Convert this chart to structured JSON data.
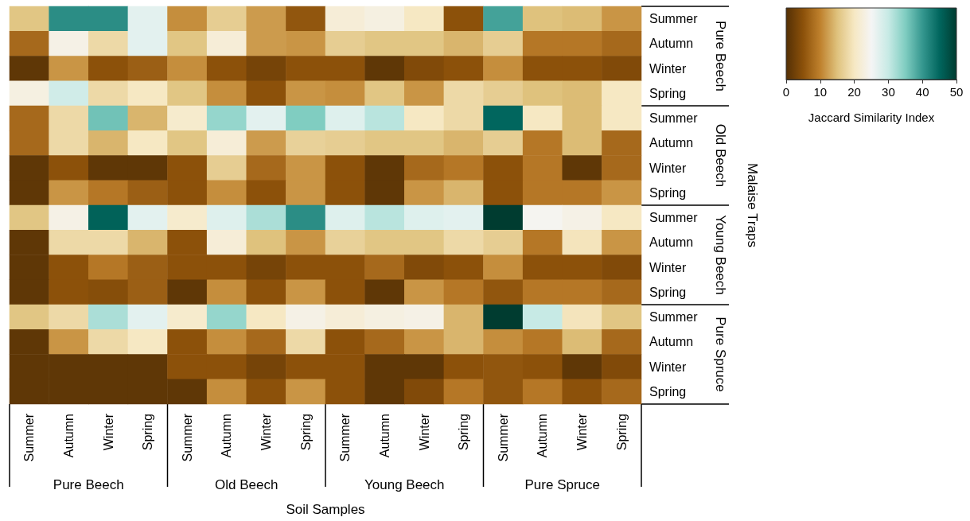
{
  "chart_data": {
    "type": "heatmap",
    "xlabel": "Soil Samples",
    "ylabel": "Malaise Traps",
    "clabel": "Jaccard Similarity Index",
    "categories": [
      "Summer",
      "Autumn",
      "Winter",
      "Spring",
      "Summer",
      "Autumn",
      "Winter",
      "Spring",
      "Summer",
      "Autumn",
      "Winter",
      "Spring",
      "Summer",
      "Autumn",
      "Winter",
      "Spring"
    ],
    "y_categories": [
      "Summer",
      "Autumn",
      "Winter",
      "Spring",
      "Summer",
      "Autumn",
      "Winter",
      "Spring",
      "Summer",
      "Autumn",
      "Winter",
      "Spring",
      "Summer",
      "Autumn",
      "Winter",
      "Spring"
    ],
    "annotations": [
      "Pure Beech",
      "Old Beech",
      "Young Beech",
      "Pure Spruce",
      "Pure Beech",
      "Old Beech",
      "Young Beech",
      "Pure Spruce"
    ],
    "cells": [
      [
        15.5,
        41,
        41,
        27,
        11,
        16.5,
        12,
        5.5,
        22,
        23,
        20,
        5,
        39,
        15,
        14.5,
        11.5
      ],
      [
        7.5,
        23.5,
        18,
        27,
        15.5,
        22,
        12,
        11.5,
        16.5,
        15.5,
        15.5,
        14,
        16.5,
        9,
        9,
        7.5
      ],
      [
        1,
        11.5,
        5,
        6.5,
        11,
        5,
        3,
        5,
        5,
        1,
        4,
        5,
        11,
        5,
        5,
        4
      ],
      [
        23,
        29,
        18,
        20,
        15.5,
        11,
        5,
        11.5,
        11,
        15.5,
        11.5,
        18,
        16.5,
        15,
        14.5,
        20
      ],
      [
        7.5,
        18,
        36,
        14,
        21,
        33.5,
        27,
        35,
        27.5,
        31,
        20,
        18,
        45,
        20,
        14.5,
        20
      ],
      [
        7.5,
        18,
        14,
        20,
        15.5,
        22,
        12,
        17,
        16.5,
        15.5,
        15.5,
        14,
        16.5,
        9,
        14.5,
        7.5
      ],
      [
        1,
        5,
        1,
        1,
        5,
        16.5,
        7.5,
        11.5,
        5,
        1,
        7.5,
        9,
        5,
        9,
        1,
        7.5
      ],
      [
        1,
        11.5,
        9,
        6.5,
        5,
        11,
        5,
        11.5,
        5,
        1,
        11.5,
        14,
        5,
        9,
        9,
        11.5
      ],
      [
        15.5,
        23.5,
        45.5,
        27,
        21,
        27.5,
        32,
        41,
        27.5,
        31,
        27.5,
        27,
        50,
        24.5,
        23.5,
        20
      ],
      [
        1,
        18,
        18,
        14,
        5,
        22,
        15,
        11.5,
        17,
        15.5,
        15.5,
        18,
        16.5,
        9,
        19.5,
        11.5
      ],
      [
        1,
        5,
        9,
        6.5,
        5,
        5,
        3,
        5,
        5,
        7.5,
        4,
        5,
        11,
        5,
        5,
        4
      ],
      [
        1,
        5,
        4.5,
        6.5,
        1,
        11,
        5,
        11.5,
        5,
        1,
        11.5,
        9,
        5.5,
        9,
        9,
        7.5
      ],
      [
        15.5,
        18,
        32,
        27,
        21,
        33.5,
        20,
        23.5,
        22,
        23,
        23.5,
        14,
        50,
        30,
        19.5,
        15.5
      ],
      [
        1,
        11.5,
        18,
        20,
        5,
        11,
        7.5,
        18,
        5,
        7.5,
        11.5,
        14,
        11,
        9,
        14.5,
        7.5
      ],
      [
        1,
        1,
        1,
        1,
        5,
        5,
        3,
        5,
        5,
        1,
        1,
        5,
        5.5,
        5,
        1,
        4
      ],
      [
        1,
        1,
        1,
        1,
        1,
        11,
        5,
        11.5,
        5,
        1,
        4,
        9,
        5.5,
        9,
        5,
        7.5
      ]
    ],
    "clim": [
      0,
      50
    ],
    "cticks": [
      0,
      10,
      20,
      30,
      40,
      50
    ]
  }
}
